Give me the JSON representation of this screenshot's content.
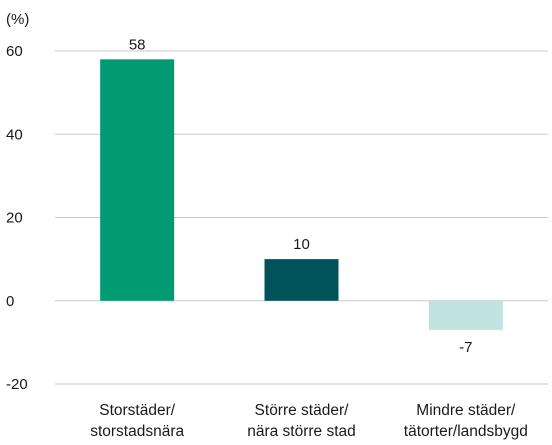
{
  "chart_data": {
    "type": "bar",
    "title": "",
    "ylabel": "(%)",
    "xlabel": "",
    "ylim": [
      -20,
      60
    ],
    "yticks": [
      60,
      40,
      20,
      0,
      -20
    ],
    "grid": true,
    "categories": [
      [
        "Storstäder/",
        "storstadsnära"
      ],
      [
        "Större städer/",
        "nära större stad"
      ],
      [
        "Mindre städer/",
        "tätorter/landsbygd"
      ]
    ],
    "values": [
      58,
      10,
      -7
    ],
    "value_labels": [
      "58",
      "10",
      "-7"
    ],
    "colors": [
      "#009b72",
      "#00525b",
      "#bfe3de"
    ]
  }
}
